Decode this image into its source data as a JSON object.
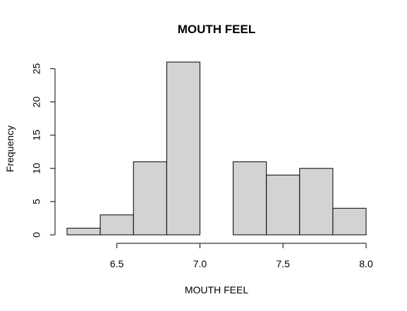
{
  "chart_data": {
    "type": "bar",
    "title": "MOUTH FEEL",
    "xlabel": "MOUTH FEEL",
    "ylabel": "Frequency",
    "bin_edges": [
      6.2,
      6.4,
      6.6,
      6.8,
      7.0,
      7.2,
      7.4,
      7.6,
      7.8,
      8.0
    ],
    "values": [
      1,
      3,
      11,
      26,
      0,
      11,
      9,
      10,
      4
    ],
    "x_ticks": [
      6.5,
      7.0,
      7.5,
      8.0
    ],
    "x_tick_labels": [
      "6.5",
      "7.0",
      "7.5",
      "8.0"
    ],
    "y_ticks": [
      0,
      5,
      10,
      15,
      20,
      25
    ],
    "y_tick_labels": [
      "0",
      "5",
      "10",
      "15",
      "20",
      "25"
    ],
    "xlim": [
      6.2,
      8.0
    ],
    "ylim": [
      0,
      26
    ],
    "grid": false,
    "legend": "none",
    "bar_color": "#d3d3d3",
    "edge_color": "#000000"
  }
}
